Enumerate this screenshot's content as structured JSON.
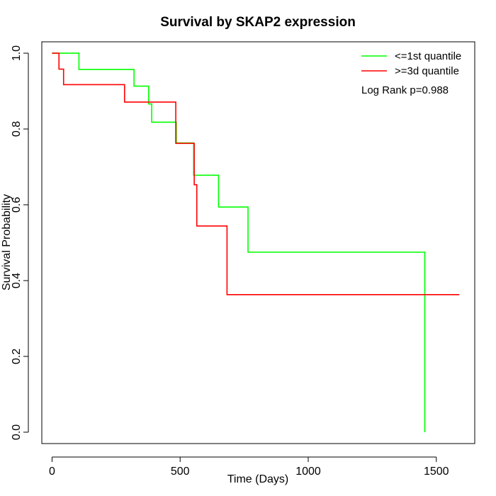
{
  "chart_data": {
    "type": "line",
    "title": "Survival by SKAP2 expression",
    "xlabel": "Time (Days)",
    "ylabel": "Survival Probability",
    "xlim": [
      -40,
      1650
    ],
    "ylim": [
      -0.03,
      1.03
    ],
    "x_ticks": [
      0,
      500,
      1000,
      1500
    ],
    "y_ticks": [
      0.0,
      0.2,
      0.4,
      0.6,
      0.8,
      1.0
    ],
    "x_tick_labels": [
      "0",
      "500",
      "1000",
      "1500"
    ],
    "y_tick_labels": [
      "0.0",
      "0.2",
      "0.4",
      "0.6",
      "0.8",
      "1.0"
    ],
    "step": "post",
    "grid": false,
    "legend_position": "top-right",
    "annotation": "Log Rank p=0.988",
    "series": [
      {
        "name": "<=1st quantile",
        "color": "#00ff00",
        "x": [
          0,
          105,
          303,
          320,
          377,
          389,
          485,
          553,
          650,
          765,
          1455,
          1455
        ],
        "y": [
          1.0,
          0.957,
          0.957,
          0.913,
          0.866,
          0.818,
          0.763,
          0.678,
          0.594,
          0.475,
          0.475,
          0.0
        ]
      },
      {
        "name": ">=3d quantile",
        "color": "#ff0000",
        "x": [
          0,
          27,
          45,
          283,
          483,
          555,
          565,
          683,
          1590
        ],
        "y": [
          1.0,
          0.958,
          0.917,
          0.871,
          0.762,
          0.653,
          0.544,
          0.363,
          0.363
        ]
      }
    ]
  }
}
